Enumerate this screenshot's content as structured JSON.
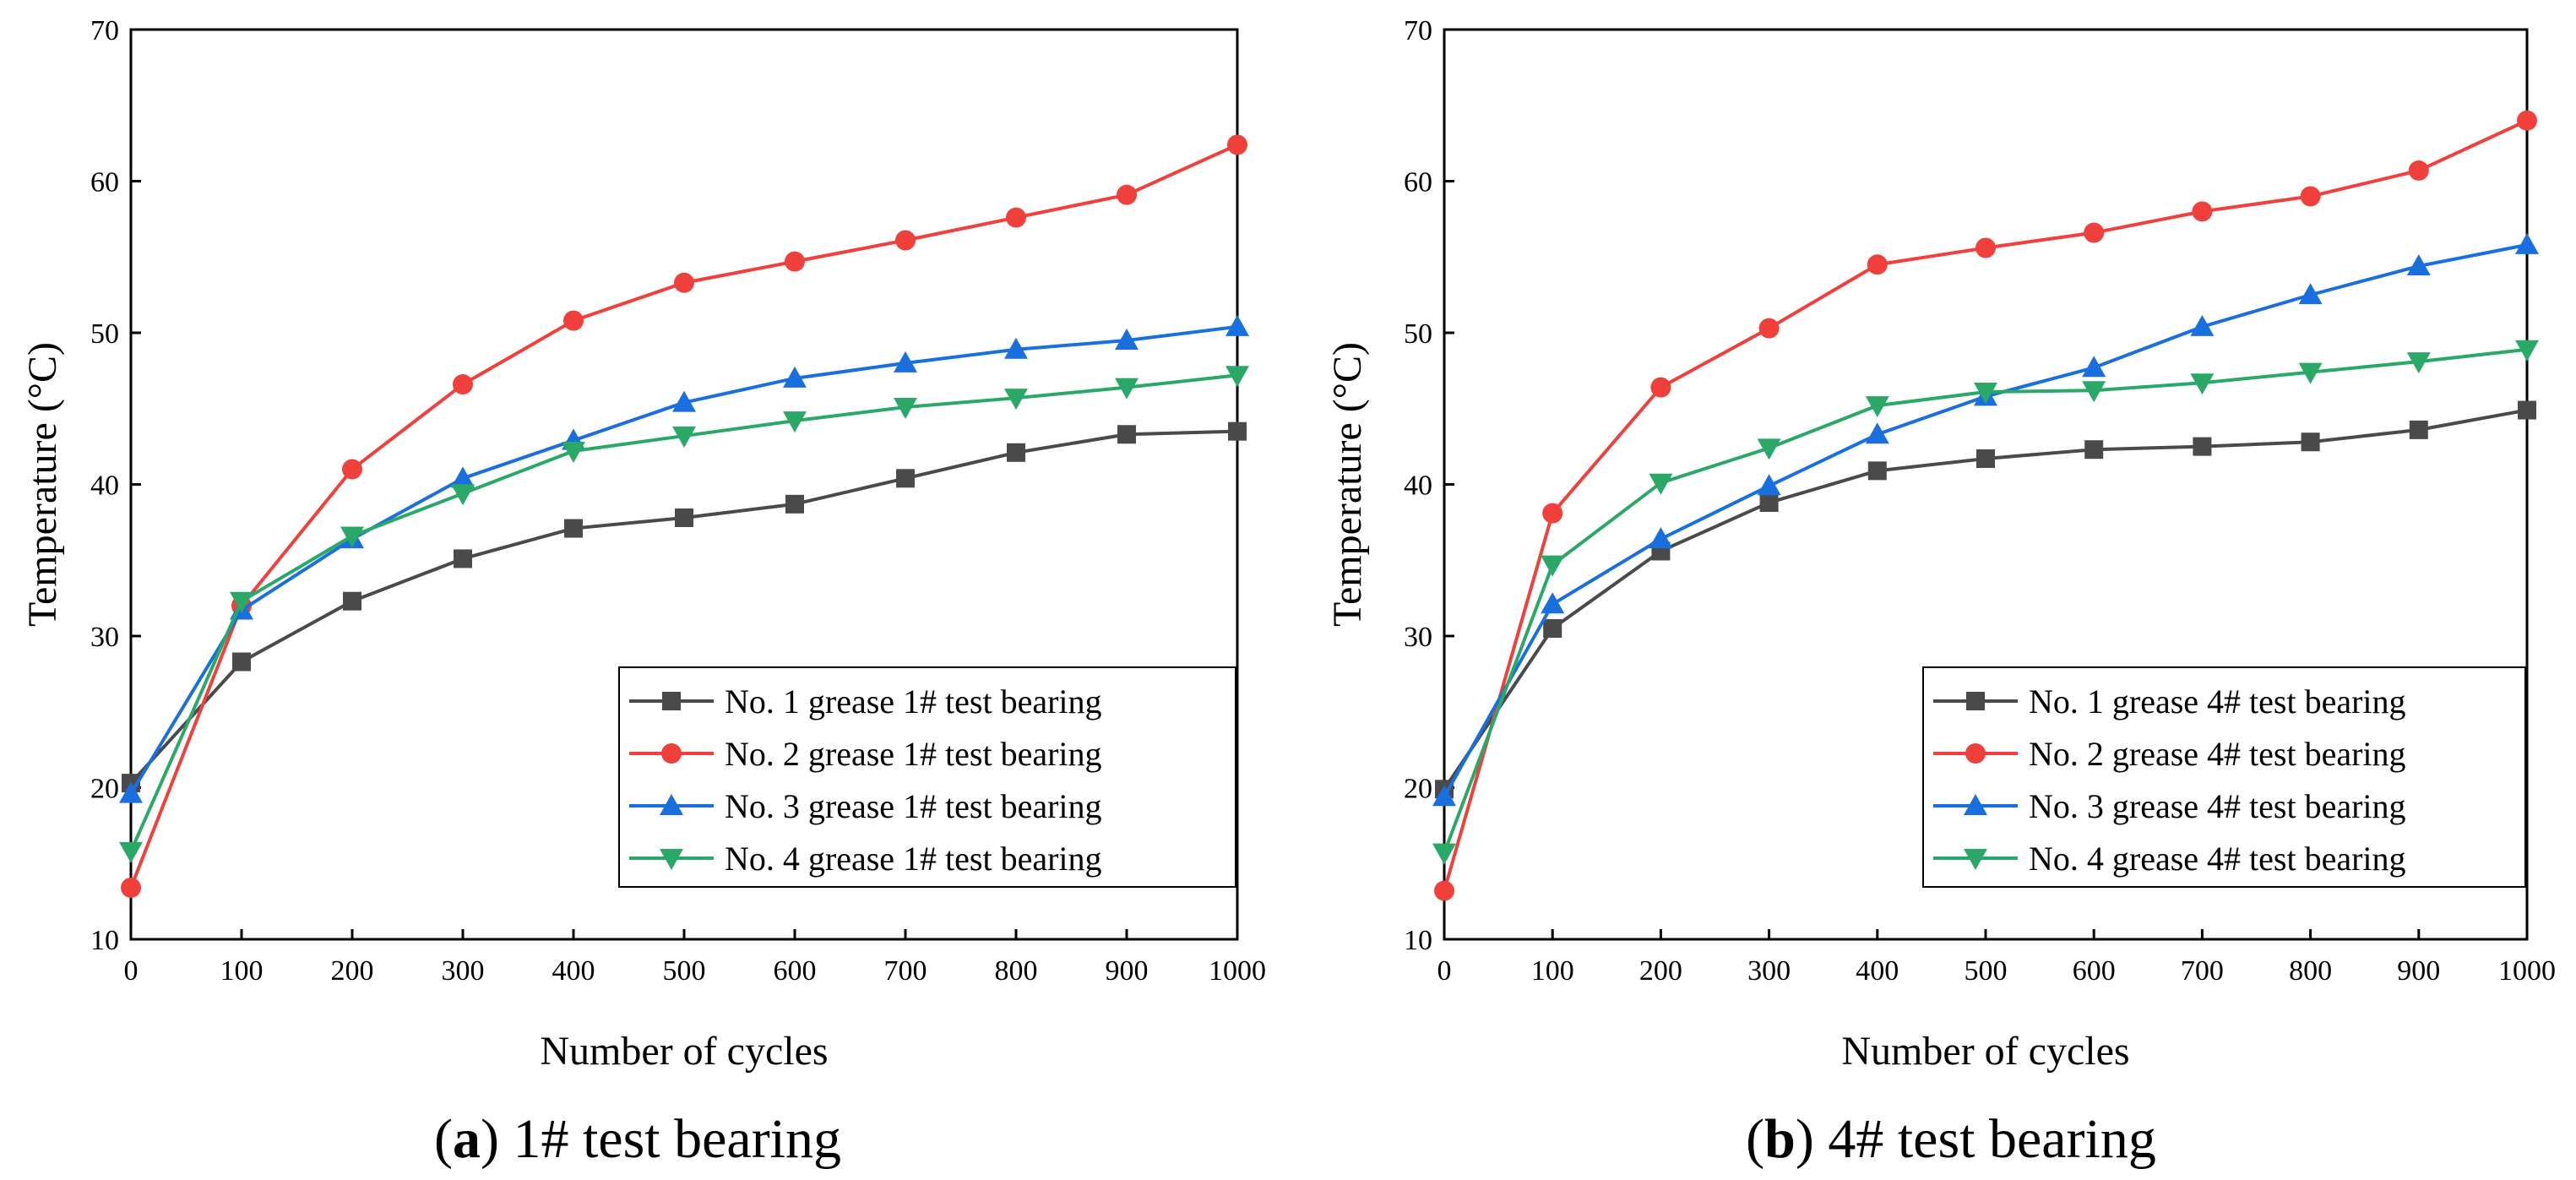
{
  "figure": {
    "captions": [
      {
        "letter": "a",
        "text": "1# test bearing"
      },
      {
        "letter": "b",
        "text": "4# test bearing"
      }
    ]
  },
  "chart_data": [
    {
      "type": "line",
      "title": "",
      "xlabel": "Number of cycles",
      "ylabel": "Temperature (°C)",
      "xlim": [
        0,
        1000
      ],
      "ylim": [
        10,
        70
      ],
      "xticks": [
        0,
        100,
        200,
        300,
        400,
        500,
        600,
        700,
        800,
        900,
        1000
      ],
      "yticks": [
        10,
        20,
        30,
        40,
        50,
        60,
        70
      ],
      "legend_position": "bottom-right",
      "x": [
        0,
        100,
        200,
        300,
        400,
        500,
        600,
        700,
        800,
        900,
        1000
      ],
      "series": [
        {
          "name": "No. 1 grease 1# test bearing",
          "color": "#4a4a4a",
          "marker": "square",
          "values": [
            20.3,
            28.3,
            32.3,
            35.1,
            37.1,
            37.8,
            38.7,
            40.4,
            42.1,
            43.3,
            43.5
          ]
        },
        {
          "name": "No. 2 grease 1# test bearing",
          "color": "#f0403c",
          "marker": "circle",
          "values": [
            13.4,
            32.0,
            41.0,
            46.6,
            50.8,
            53.3,
            54.7,
            56.1,
            57.6,
            59.1,
            62.4
          ]
        },
        {
          "name": "No. 3 grease 1# test bearing",
          "color": "#1a6fdf",
          "marker": "triangle-up",
          "values": [
            19.6,
            31.7,
            36.4,
            40.4,
            42.9,
            45.4,
            47.0,
            48.0,
            48.9,
            49.5,
            50.4
          ]
        },
        {
          "name": "No. 4 grease 1# test bearing",
          "color": "#2aa868",
          "marker": "triangle-down",
          "values": [
            15.8,
            32.3,
            36.6,
            39.4,
            42.2,
            43.2,
            44.2,
            45.1,
            45.7,
            46.4,
            47.2
          ]
        }
      ]
    },
    {
      "type": "line",
      "title": "",
      "xlabel": "Number of cycles",
      "ylabel": "Temperature (°C)",
      "xlim": [
        0,
        1000
      ],
      "ylim": [
        10,
        70
      ],
      "xticks": [
        0,
        100,
        200,
        300,
        400,
        500,
        600,
        700,
        800,
        900,
        1000
      ],
      "yticks": [
        10,
        20,
        30,
        40,
        50,
        60,
        70
      ],
      "legend_position": "bottom-right",
      "x": [
        0,
        100,
        200,
        300,
        400,
        500,
        600,
        700,
        800,
        900,
        1000
      ],
      "series": [
        {
          "name": "No. 1 grease 4# test bearing",
          "color": "#4a4a4a",
          "marker": "square",
          "values": [
            19.9,
            30.5,
            35.6,
            38.8,
            40.9,
            41.7,
            42.3,
            42.5,
            42.8,
            43.6,
            44.9
          ]
        },
        {
          "name": "No. 2 grease 4# test bearing",
          "color": "#f0403c",
          "marker": "circle",
          "values": [
            13.2,
            38.1,
            46.4,
            50.3,
            54.5,
            55.6,
            56.6,
            58.0,
            59.0,
            60.7,
            64.0
          ]
        },
        {
          "name": "No. 3 grease 4# test bearing",
          "color": "#1a6fdf",
          "marker": "triangle-up",
          "values": [
            19.4,
            32.1,
            36.4,
            39.9,
            43.3,
            45.8,
            47.7,
            50.4,
            52.5,
            54.4,
            55.8
          ]
        },
        {
          "name": "No. 4 grease 4# test bearing",
          "color": "#2aa868",
          "marker": "triangle-down",
          "values": [
            15.7,
            34.7,
            40.1,
            42.4,
            45.2,
            46.1,
            46.2,
            46.7,
            47.4,
            48.1,
            48.9
          ]
        }
      ]
    }
  ]
}
